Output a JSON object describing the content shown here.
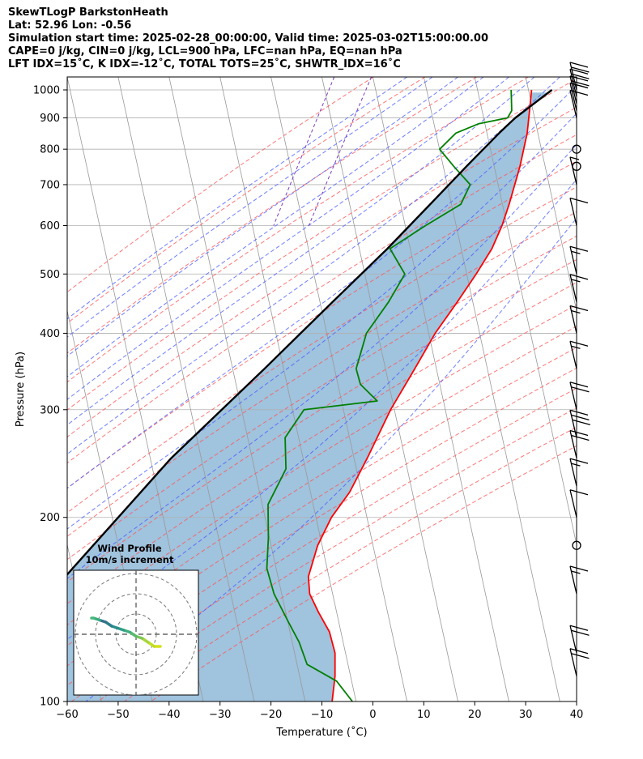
{
  "header": {
    "line1": "SkewTLogP BarkstonHeath",
    "line2": "Lat: 52.96   Lon: -0.56",
    "line3": "Simulation start time: 2025-02-28_00:00:00, Valid time: 2025-03-02T15:00:00.00",
    "line4": "CAPE=0 j/kg, CIN=0 j/kg, LCL=900 hPa, LFC=nan hPa, EQ=nan hPa",
    "line5": "LFT IDX=15˚C, K IDX=-12˚C, TOTAL TOTS=25˚C, SHWTR_IDX=16˚C"
  },
  "chart_data": {
    "type": "line",
    "chart_kind": "skew-T log-P diagram",
    "xlabel": "Temperature (˚C)",
    "ylabel": "Pressure (hPa)",
    "xlim": [
      -60,
      40
    ],
    "ylim": [
      1050,
      100
    ],
    "yscale": "log",
    "x_ticks": [
      -60,
      -50,
      -40,
      -30,
      -20,
      -10,
      0,
      10,
      20,
      30,
      40
    ],
    "x_tick_labels": [
      "−60",
      "−50",
      "−40",
      "−30",
      "−20",
      "−10",
      "0",
      "10",
      "20",
      "30",
      "40"
    ],
    "y_ticks": [
      1000,
      900,
      800,
      700,
      600,
      500,
      400,
      300,
      200,
      100
    ],
    "grid": true,
    "colors": {
      "temperature": "#ff0000",
      "dewpoint": "#008000",
      "parcel": "#000000",
      "cin_shading": "#8fb8d8",
      "isotherms": "#999999",
      "dry_adiabats": "#ff5555",
      "moist_adiabats": "#4a5cff",
      "mixing_ratio": "#7a3cc0"
    },
    "series": [
      {
        "key": "temperature",
        "x": [
          5.0,
          5.5,
          6.0,
          6.0,
          5.5,
          5.0,
          4.0,
          2.0,
          -0.5,
          -3.5,
          -6.0,
          -9.0,
          -11.5,
          -13.5,
          -16.0,
          -17.5,
          -18.0,
          -17.0,
          -14.5,
          -11.5,
          -9.5,
          -8.5,
          -8.0
        ],
        "y": [
          1000,
          925,
          850,
          750,
          650,
          600,
          550,
          500,
          450,
          400,
          350,
          300,
          250,
          220,
          200,
          180,
          160,
          150,
          140,
          130,
          120,
          110,
          100
        ]
      },
      {
        "key": "dewpoint",
        "x": [
          1.0,
          2.0,
          1.5,
          -4.0,
          -8.0,
          -10.5,
          -7.0,
          -3.0,
          -4.0,
          -10.0,
          -16.0,
          -12.0,
          -14.0,
          -17.0,
          -17.5,
          -16.0,
          -12.0,
          -26.0,
          -28.5,
          -27.0,
          -29.0,
          -27.5,
          -26.5,
          -24.0,
          -20.0,
          -17.0,
          -14.5,
          -8.0,
          -4.0
        ],
        "y": [
          1000,
          925,
          900,
          880,
          850,
          800,
          750,
          700,
          650,
          600,
          550,
          500,
          450,
          400,
          350,
          330,
          310,
          300,
          270,
          240,
          210,
          185,
          165,
          150,
          135,
          125,
          115,
          108,
          100
        ]
      },
      {
        "key": "parcel",
        "x": [
          9.0,
          3.0,
          0.5,
          -4.5,
          -10.0,
          -16.5,
          -25.0,
          -35.5,
          -50.0,
          -68.0
        ],
        "y": [
          1000,
          900,
          850,
          750,
          650,
          550,
          450,
          350,
          250,
          150
        ]
      }
    ],
    "wind_barbs": [
      {
        "p": 1000,
        "flags": 0,
        "full": 2,
        "half": 0
      },
      {
        "p": 975,
        "flags": 0,
        "full": 2,
        "half": 0
      },
      {
        "p": 950,
        "flags": 0,
        "full": 2,
        "half": 0
      },
      {
        "p": 925,
        "flags": 0,
        "full": 1,
        "half": 0
      },
      {
        "p": 900,
        "flags": 0,
        "full": 1,
        "half": 0
      },
      {
        "p": 800,
        "calm": true
      },
      {
        "p": 750,
        "calm": true
      },
      {
        "p": 700,
        "flags": 0,
        "full": 0,
        "half": 1
      },
      {
        "p": 600,
        "flags": 0,
        "full": 1,
        "half": 0
      },
      {
        "p": 500,
        "flags": 0,
        "full": 1,
        "half": 1
      },
      {
        "p": 450,
        "flags": 0,
        "full": 1,
        "half": 1
      },
      {
        "p": 400,
        "flags": 0,
        "full": 1,
        "half": 1
      },
      {
        "p": 350,
        "flags": 0,
        "full": 1,
        "half": 1
      },
      {
        "p": 300,
        "flags": 0,
        "full": 2,
        "half": 0
      },
      {
        "p": 270,
        "flags": 0,
        "full": 3,
        "half": 0
      },
      {
        "p": 250,
        "flags": 0,
        "full": 2,
        "half": 0
      },
      {
        "p": 225,
        "flags": 0,
        "full": 1,
        "half": 1
      },
      {
        "p": 200,
        "flags": 0,
        "full": 1,
        "half": 0
      },
      {
        "p": 180,
        "calm": true
      },
      {
        "p": 150,
        "flags": 0,
        "full": 1,
        "half": 1
      },
      {
        "p": 120,
        "flags": 0,
        "full": 2,
        "half": 0
      },
      {
        "p": 110,
        "flags": 0,
        "full": 2,
        "half": 0
      }
    ],
    "hodograph": {
      "title": "Wind Profile",
      "subtitle": "10m/s increment",
      "rings_ms": [
        10,
        20,
        30
      ],
      "u": [
        12,
        9,
        6,
        3,
        0,
        -3,
        -6,
        -9,
        -12,
        -15,
        -18,
        -21,
        -22
      ],
      "v": [
        -6,
        -6,
        -4,
        -2,
        -1,
        1,
        2,
        3,
        4,
        6,
        7,
        8,
        8
      ]
    }
  }
}
